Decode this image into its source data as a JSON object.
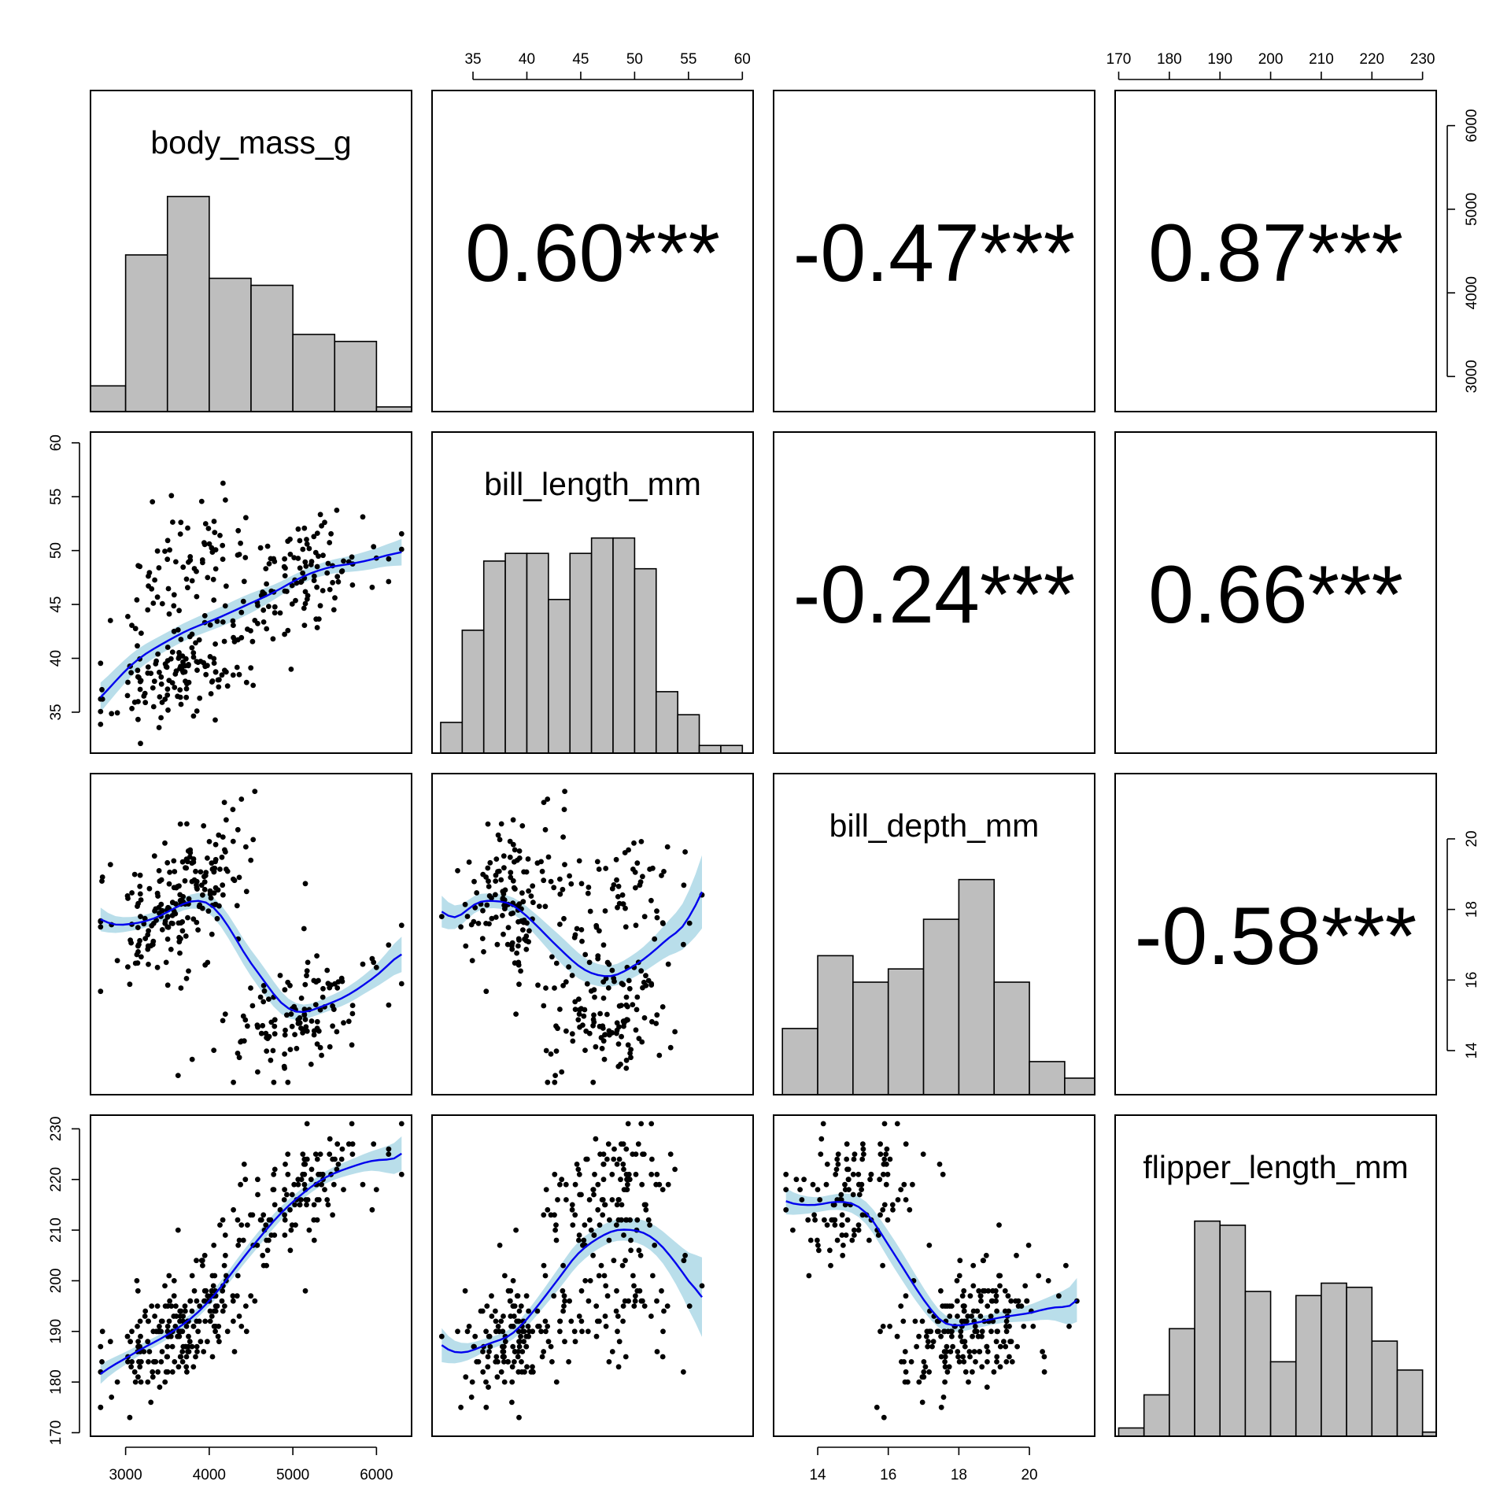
{
  "chart_data": {
    "type": "scatter",
    "variables": [
      "body_mass_g",
      "bill_length_mm",
      "bill_depth_mm",
      "flipper_length_mm"
    ],
    "ranges": {
      "body_mass_g": [
        2580,
        6420
      ],
      "bill_length_mm": [
        31.2,
        61.0
      ],
      "bill_depth_mm": [
        12.75,
        21.85
      ],
      "flipper_length_mm": [
        169.3,
        232.7
      ]
    },
    "ticks": {
      "body_mass_g": [
        3000,
        4000,
        5000,
        6000
      ],
      "bill_length_mm": [
        35,
        40,
        45,
        50,
        55,
        60
      ],
      "bill_depth_mm": [
        14,
        16,
        18,
        20
      ],
      "flipper_length_mm": [
        170,
        180,
        190,
        200,
        210,
        220,
        230
      ]
    },
    "histograms": {
      "body_mass_g": {
        "breaks": [
          2500,
          3000,
          3500,
          4000,
          4500,
          5000,
          5500,
          6000,
          6500
        ],
        "counts": [
          11,
          67,
          92,
          57,
          54,
          33,
          30,
          2
        ]
      },
      "bill_length_mm": {
        "breaks": [
          32,
          34,
          36,
          38,
          40,
          42,
          44,
          46,
          48,
          50,
          52,
          54,
          56,
          58,
          60
        ],
        "counts": [
          4,
          16,
          25,
          26,
          26,
          20,
          26,
          28,
          28,
          24,
          8,
          5,
          1,
          1
        ]
      },
      "bill_depth_mm": {
        "breaks": [
          13,
          14,
          15,
          16,
          17,
          18,
          19,
          20,
          21,
          22
        ],
        "counts": [
          20,
          42,
          34,
          38,
          53,
          65,
          34,
          10,
          5
        ]
      },
      "flipper_length_mm": {
        "breaks": [
          170,
          175,
          180,
          185,
          190,
          195,
          200,
          205,
          210,
          215,
          220,
          225,
          230,
          235
        ],
        "counts": [
          2,
          10,
          26,
          52,
          51,
          35,
          18,
          34,
          37,
          36,
          23,
          16,
          1
        ]
      }
    },
    "correlations": [
      {
        "row": "body_mass_g",
        "col": "bill_length_mm",
        "label": "0.60***"
      },
      {
        "row": "body_mass_g",
        "col": "bill_depth_mm",
        "label": "-0.47***"
      },
      {
        "row": "body_mass_g",
        "col": "flipper_length_mm",
        "label": "0.87***"
      },
      {
        "row": "bill_length_mm",
        "col": "bill_depth_mm",
        "label": "-0.24***"
      },
      {
        "row": "bill_length_mm",
        "col": "flipper_length_mm",
        "label": "0.66***"
      },
      {
        "row": "bill_depth_mm",
        "col": "flipper_length_mm",
        "label": "-0.58***"
      }
    ],
    "grid": false,
    "legend": "none"
  },
  "colors": {
    "histogram_fill": "#bebebe",
    "points": "#000000",
    "smooth_line": "#0000ee",
    "confidence_band": "#add8e6"
  }
}
